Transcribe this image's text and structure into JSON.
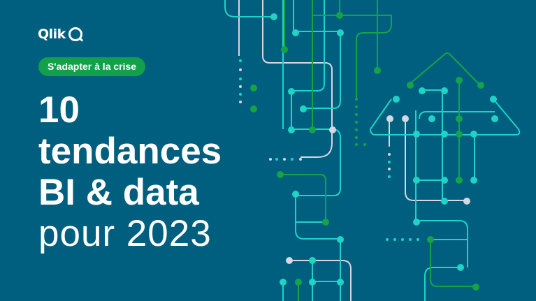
{
  "brand": {
    "name": "Qlik"
  },
  "badge": {
    "label": "S'adapter à la crise"
  },
  "headline": {
    "line1": "10",
    "line2": "tendances",
    "line3": "BI & data",
    "line4": "pour 2023"
  },
  "colors": {
    "background": "#005f7e",
    "badge": "#12a04a",
    "cyan": "#1fd3c6",
    "green": "#15a445",
    "gray": "#d5d7e1"
  }
}
